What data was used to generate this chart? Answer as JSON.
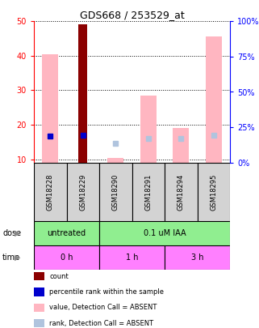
{
  "title": "GDS668 / 253529_at",
  "samples": [
    "GSM18228",
    "GSM18229",
    "GSM18290",
    "GSM18291",
    "GSM18294",
    "GSM18295"
  ],
  "value_absent": [
    40.5,
    null,
    10.5,
    28.5,
    19.0,
    45.5
  ],
  "rank_absent": [
    null,
    null,
    13.5,
    17.0,
    17.0,
    19.5
  ],
  "count_value": [
    null,
    49.0,
    null,
    null,
    null,
    null
  ],
  "count_rank": [
    null,
    19.5,
    null,
    null,
    null,
    null
  ],
  "rank_present": [
    19.0,
    null,
    null,
    null,
    null,
    null
  ],
  "ylim_left": [
    9,
    50
  ],
  "ylim_right": [
    0,
    100
  ],
  "yticks_left": [
    10,
    20,
    30,
    40,
    50
  ],
  "yticks_right": [
    0,
    25,
    50,
    75,
    100
  ],
  "color_count": "#8B0000",
  "color_rank_present": "#0000CD",
  "color_value_absent": "#FFB6C1",
  "color_rank_absent": "#B0C4DE",
  "dose_untreated_cols": [
    0,
    2
  ],
  "dose_iaa_cols": [
    2,
    6
  ],
  "time_0h_cols": [
    0,
    2
  ],
  "time_1h_cols": [
    2,
    4
  ],
  "time_3h_cols": [
    4,
    6
  ],
  "color_dose": "#90EE90",
  "color_time": "#FF80FF",
  "legend_items": [
    {
      "color": "#8B0000",
      "label": "count"
    },
    {
      "color": "#0000CD",
      "label": "percentile rank within the sample"
    },
    {
      "color": "#FFB6C1",
      "label": "value, Detection Call = ABSENT"
    },
    {
      "color": "#B0C4DE",
      "label": "rank, Detection Call = ABSENT"
    }
  ]
}
